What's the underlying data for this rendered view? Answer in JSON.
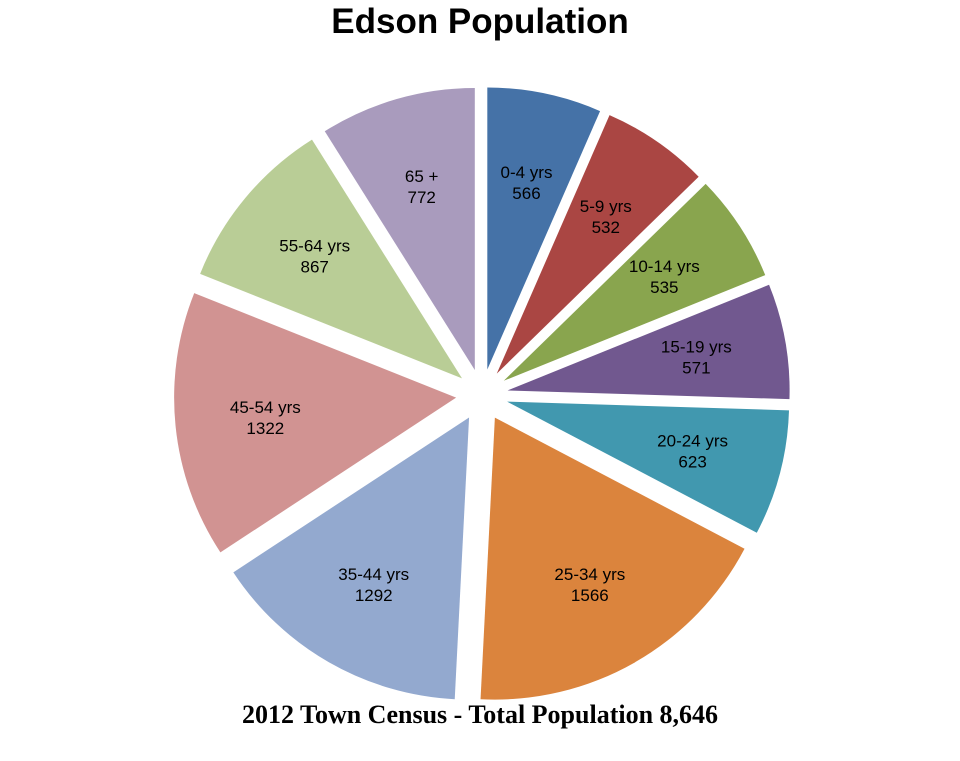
{
  "chart_data": {
    "type": "pie",
    "title": "Edson Population",
    "caption": "2012 Town Census - Total Population 8,646",
    "exploded": true,
    "slices": [
      {
        "label": "0-4 yrs",
        "value": 566,
        "color": "#4572a7"
      },
      {
        "label": "5-9 yrs",
        "value": 532,
        "color": "#aa4643"
      },
      {
        "label": "10-14 yrs",
        "value": 535,
        "color": "#89a54e"
      },
      {
        "label": "15-19 yrs",
        "value": 571,
        "color": "#71588f"
      },
      {
        "label": "20-24 yrs",
        "value": 623,
        "color": "#4198af"
      },
      {
        "label": "25-34 yrs",
        "value": 1566,
        "color": "#db843d"
      },
      {
        "label": "35-44 yrs",
        "value": 1292,
        "color": "#93a9cf"
      },
      {
        "label": "45-54 yrs",
        "value": 1322,
        "color": "#d19392"
      },
      {
        "label": "55-64 yrs",
        "value": 867,
        "color": "#b9cd96"
      },
      {
        "label": "65 +",
        "value": 772,
        "color": "#a99bbd"
      }
    ]
  }
}
